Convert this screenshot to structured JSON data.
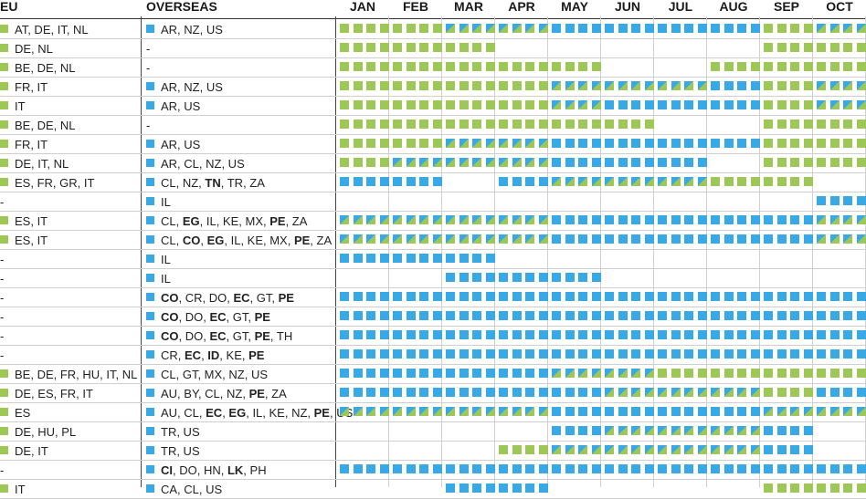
{
  "header": {
    "eu": "EU",
    "overseas": "OVERSEAS",
    "months": [
      "JAN",
      "FEB",
      "MAR",
      "APR",
      "MAY",
      "JUN",
      "JUL",
      "AUG",
      "SEP",
      "OCT"
    ]
  },
  "colors": {
    "eu_green": "#9dc857",
    "overseas_blue": "#39a9e6"
  },
  "rows": [
    {
      "eu": "AT, DE, IT, NL",
      "eu_marker": true,
      "overseas": [
        {
          "t": "AR, NZ, US"
        }
      ],
      "overseas_marker": true,
      "weeks": "ggggggggmmmmmmmmbbbbbbbbbbbbbbbbggggmmmm"
    },
    {
      "eu": "DE, NL",
      "eu_marker": true,
      "overseas": [
        {
          "t": "-"
        }
      ],
      "overseas_marker": false,
      "weeks": "gggggggggggg....................gggggggg"
    },
    {
      "eu": "BE, DE, NL",
      "eu_marker": true,
      "overseas": [
        {
          "t": "-"
        }
      ],
      "overseas_marker": false,
      "weeks": "gggggggggggggggggggg........gggggggggggg"
    },
    {
      "eu": "FR, IT",
      "eu_marker": true,
      "overseas": [
        {
          "t": "AR, NZ, US"
        }
      ],
      "overseas_marker": true,
      "weeks": "ggggggggggggggggmmmmmmmmmmmmbbbbggggmmmm"
    },
    {
      "eu": "IT",
      "eu_marker": true,
      "overseas": [
        {
          "t": "AR, US"
        }
      ],
      "overseas_marker": true,
      "weeks": "ggggggggggggggggmmmmbbbbbbbbbbbbggggmmmm"
    },
    {
      "eu": "BE, DE, NL",
      "eu_marker": true,
      "overseas": [
        {
          "t": "-"
        }
      ],
      "overseas_marker": false,
      "weeks": "gggggggggggggggggggggggg........gggggggg"
    },
    {
      "eu": "FR, IT",
      "eu_marker": true,
      "overseas": [
        {
          "t": "AR, US"
        }
      ],
      "overseas_marker": true,
      "weeks": "ggggggggmmmmmmmmbbbbbbbbbbbbbbbbgggggggg"
    },
    {
      "eu": "DE, IT, NL",
      "eu_marker": true,
      "overseas": [
        {
          "t": "AR, CL, NZ, US"
        }
      ],
      "overseas_marker": true,
      "weeks": "ggggmmmmmmmmmmmmbbbbbbbbbbbb....gggggggg"
    },
    {
      "eu": "ES, FR, GR, IT",
      "eu_marker": true,
      "overseas": [
        {
          "t": "CL, NZ, "
        },
        {
          "t": "TN",
          "b": true
        },
        {
          "t": ", TR, ZA"
        }
      ],
      "overseas_marker": true,
      "weeks": "bbbbbbbb....bbbbmmmmmmmmmmmmgggggggg...."
    },
    {
      "eu": "-",
      "eu_marker": false,
      "overseas": [
        {
          "t": "IL"
        }
      ],
      "overseas_marker": true,
      "weeks": "....................................bbbb"
    },
    {
      "eu": "ES, IT",
      "eu_marker": true,
      "overseas": [
        {
          "t": "CL, "
        },
        {
          "t": "EG",
          "b": true
        },
        {
          "t": ", IL, KE, MX, "
        },
        {
          "t": "PE",
          "b": true
        },
        {
          "t": ", ZA"
        }
      ],
      "overseas_marker": true,
      "weeks": "mmmmmmmmmmmmmmmmbbbbbbbbbbbbbbbbbbbbmmmm"
    },
    {
      "eu": "ES, IT",
      "eu_marker": true,
      "overseas": [
        {
          "t": "CL, "
        },
        {
          "t": "CO",
          "b": true
        },
        {
          "t": ", "
        },
        {
          "t": "EG",
          "b": true
        },
        {
          "t": ", IL, KE, MX, "
        },
        {
          "t": "PE",
          "b": true
        },
        {
          "t": ", ZA"
        }
      ],
      "overseas_marker": true,
      "weeks": "mmmmmmmmmmmmmmmmbbbbbbbbbbbbbbbbbbbbmmmm"
    },
    {
      "eu": "-",
      "eu_marker": false,
      "overseas": [
        {
          "t": "IL"
        }
      ],
      "overseas_marker": true,
      "weeks": "bbbbbbbbbbbb............................"
    },
    {
      "eu": "-",
      "eu_marker": false,
      "overseas": [
        {
          "t": "IL"
        }
      ],
      "overseas_marker": true,
      "weeks": "........bbbbbbbbbbbb...................."
    },
    {
      "eu": "-",
      "eu_marker": false,
      "overseas": [
        {
          "t": "CO",
          "b": true
        },
        {
          "t": ", CR, DO, "
        },
        {
          "t": "EC",
          "b": true
        },
        {
          "t": ", GT, "
        },
        {
          "t": "PE",
          "b": true
        }
      ],
      "overseas_marker": true,
      "weeks": "bbbbbbbbbbbbbbbbbbbbbbbbbbbbbbbbbbbbbbbb"
    },
    {
      "eu": "-",
      "eu_marker": false,
      "overseas": [
        {
          "t": "CO",
          "b": true
        },
        {
          "t": ", DO, "
        },
        {
          "t": "EC",
          "b": true
        },
        {
          "t": ", GT, "
        },
        {
          "t": "PE",
          "b": true
        }
      ],
      "overseas_marker": true,
      "weeks": "bbbbbbbbbbbbbbbbbbbbbbbbbbbbbbbbbbbbbbbb"
    },
    {
      "eu": "-",
      "eu_marker": false,
      "overseas": [
        {
          "t": "CO",
          "b": true
        },
        {
          "t": ", DO, "
        },
        {
          "t": "EC",
          "b": true
        },
        {
          "t": ", GT, "
        },
        {
          "t": "PE",
          "b": true
        },
        {
          "t": ", TH"
        }
      ],
      "overseas_marker": true,
      "weeks": "bbbbbbbbbbbbbbbbbbbbbbbbbbbbbbbbbbbbbbbb"
    },
    {
      "eu": "-",
      "eu_marker": false,
      "overseas": [
        {
          "t": "CR, "
        },
        {
          "t": "EC",
          "b": true
        },
        {
          "t": ", "
        },
        {
          "t": "ID",
          "b": true
        },
        {
          "t": ", KE, "
        },
        {
          "t": "PE",
          "b": true
        }
      ],
      "overseas_marker": true,
      "weeks": "bbbbbbbbbbbbbbbbbbbbbbbbbbbbbbbbbbbbbbbb"
    },
    {
      "eu": "BE, DE, FR, HU, IT, NL",
      "eu_marker": true,
      "overseas": [
        {
          "t": "CL, GT, MX, NZ, US"
        }
      ],
      "overseas_marker": true,
      "weeks": "bbbbbbbbbbbbbbbbmmmmmmmmgggggggggggggggg"
    },
    {
      "eu": "DE, ES, FR, IT",
      "eu_marker": true,
      "overseas": [
        {
          "t": "AU, BY, CL, NZ, "
        },
        {
          "t": "PE",
          "b": true
        },
        {
          "t": ", ZA"
        }
      ],
      "overseas_marker": true,
      "weeks": "bbbbbbbbbbbbbbbbbbbbmmmmmmmmmmmmggggbbbb"
    },
    {
      "eu": "ES",
      "eu_marker": true,
      "overseas": [
        {
          "t": "AU, CL, "
        },
        {
          "t": "EC",
          "b": true
        },
        {
          "t": ", "
        },
        {
          "t": "EG",
          "b": true
        },
        {
          "t": ", IL, KE, NZ, "
        },
        {
          "t": "PE",
          "b": true
        },
        {
          "t": ", US"
        }
      ],
      "overseas_marker": true,
      "weeks": "mmmmmmmmmmmmmmmmbbbbbbbbbbbbbbbbmmmmmmmm"
    },
    {
      "eu": "DE, HU, PL",
      "eu_marker": true,
      "overseas": [
        {
          "t": "TR, US"
        }
      ],
      "overseas_marker": true,
      "weeks": "................bbbbmmmmmmmmmmmmbbbb...."
    },
    {
      "eu": "DE, IT",
      "eu_marker": true,
      "overseas": [
        {
          "t": "TR, US"
        }
      ],
      "overseas_marker": true,
      "weeks": "............ggggmmmmmmmmmmmmmmmmbbbb...."
    },
    {
      "eu": "-",
      "eu_marker": false,
      "overseas": [
        {
          "t": "CI",
          "b": true
        },
        {
          "t": ", DO, HN, "
        },
        {
          "t": "LK",
          "b": true
        },
        {
          "t": ", PH"
        }
      ],
      "overseas_marker": true,
      "weeks": "bbbbbbbbbbbbbbbbbbbbbbbbbbbbbbbbbbbbbbbb"
    },
    {
      "eu": "IT",
      "eu_marker": true,
      "overseas": [
        {
          "t": "CA, CL, US"
        }
      ],
      "overseas_marker": true,
      "weeks": "........bbbbbbbb................gggggggg"
    }
  ]
}
